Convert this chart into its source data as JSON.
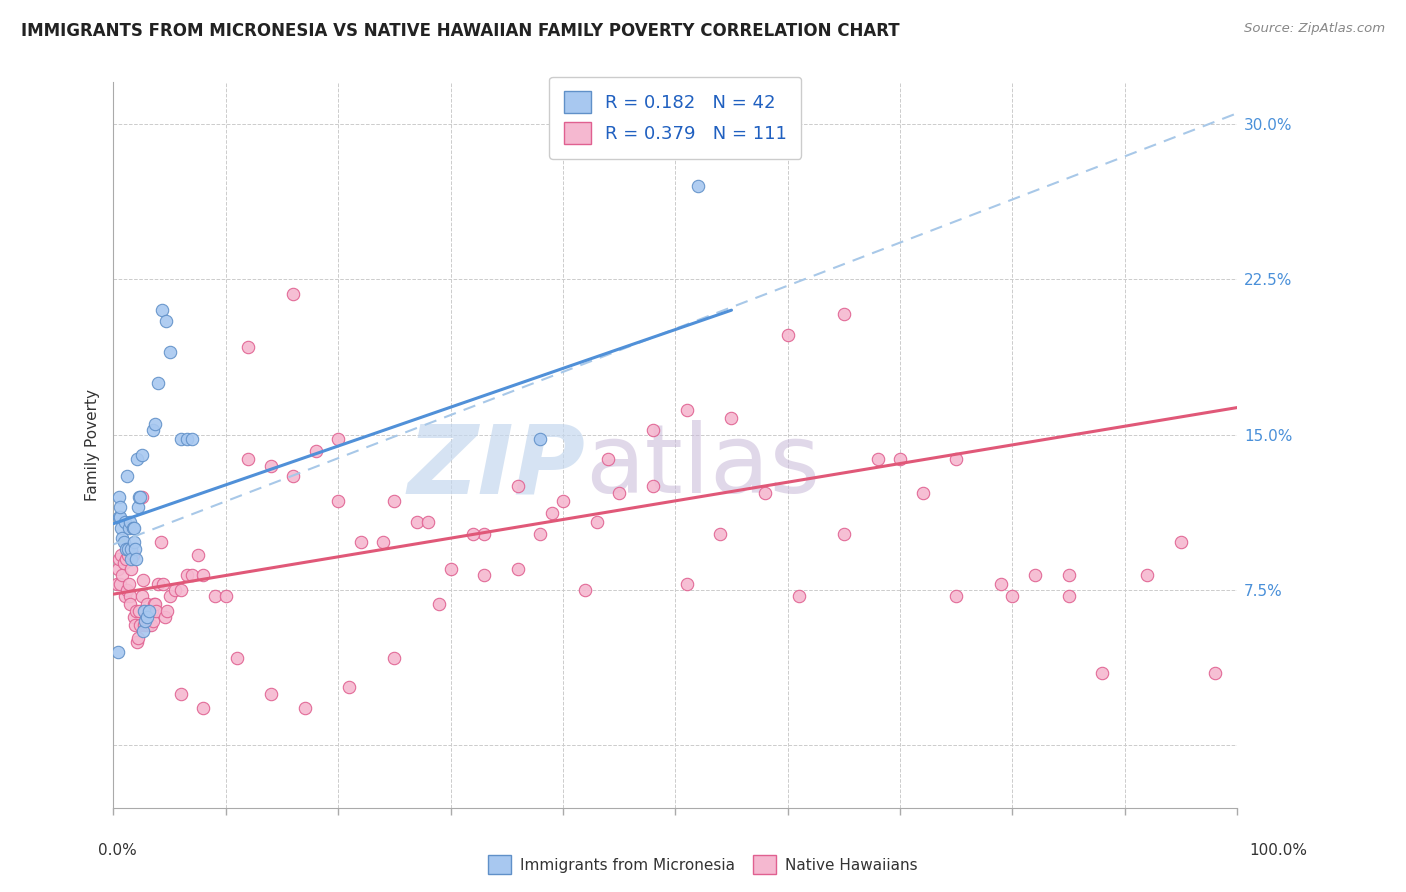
{
  "title": "IMMIGRANTS FROM MICRONESIA VS NATIVE HAWAIIAN FAMILY POVERTY CORRELATION CHART",
  "source": "Source: ZipAtlas.com",
  "ylabel": "Family Poverty",
  "yticks": [
    0.0,
    0.075,
    0.15,
    0.225,
    0.3
  ],
  "ytick_labels": [
    "",
    "7.5%",
    "15.0%",
    "22.5%",
    "30.0%"
  ],
  "legend_r1": "0.182",
  "legend_n1": "42",
  "legend_r2": "0.379",
  "legend_n2": "111",
  "color_blue_fill": "#A8C8F0",
  "color_pink_fill": "#F5B8D0",
  "color_blue_edge": "#6090C8",
  "color_pink_edge": "#E06090",
  "color_blue_line": "#5090D8",
  "color_pink_line": "#E05878",
  "color_dashed": "#A8C8E8",
  "xlim": [
    0.0,
    1.0
  ],
  "ylim": [
    -0.03,
    0.32
  ],
  "blue_line_x0": 0.0,
  "blue_line_y0": 0.107,
  "blue_line_x1": 0.55,
  "blue_line_y1": 0.21,
  "pink_line_x0": 0.0,
  "pink_line_y0": 0.073,
  "pink_line_x1": 1.0,
  "pink_line_y1": 0.163,
  "dashed_line_x0": 0.0,
  "dashed_line_y0": 0.097,
  "dashed_line_x1": 1.0,
  "dashed_line_y1": 0.305,
  "blue_scatter_x": [
    0.004,
    0.005,
    0.005,
    0.006,
    0.006,
    0.007,
    0.008,
    0.009,
    0.01,
    0.011,
    0.012,
    0.013,
    0.014,
    0.015,
    0.016,
    0.016,
    0.017,
    0.018,
    0.018,
    0.019,
    0.02,
    0.021,
    0.022,
    0.023,
    0.024,
    0.025,
    0.026,
    0.027,
    0.028,
    0.03,
    0.032,
    0.035,
    0.037,
    0.04,
    0.043,
    0.047,
    0.05,
    0.06,
    0.065,
    0.07,
    0.38,
    0.52
  ],
  "blue_scatter_y": [
    0.045,
    0.11,
    0.12,
    0.11,
    0.115,
    0.105,
    0.1,
    0.098,
    0.108,
    0.095,
    0.13,
    0.095,
    0.105,
    0.108,
    0.095,
    0.09,
    0.105,
    0.105,
    0.098,
    0.095,
    0.09,
    0.138,
    0.115,
    0.12,
    0.12,
    0.14,
    0.055,
    0.065,
    0.06,
    0.062,
    0.065,
    0.152,
    0.155,
    0.175,
    0.21,
    0.205,
    0.19,
    0.148,
    0.148,
    0.148,
    0.148,
    0.27
  ],
  "pink_scatter_x": [
    0.003,
    0.004,
    0.005,
    0.006,
    0.007,
    0.008,
    0.009,
    0.01,
    0.011,
    0.012,
    0.013,
    0.014,
    0.015,
    0.015,
    0.016,
    0.017,
    0.018,
    0.019,
    0.02,
    0.021,
    0.022,
    0.023,
    0.024,
    0.025,
    0.025,
    0.026,
    0.027,
    0.028,
    0.029,
    0.03,
    0.031,
    0.032,
    0.033,
    0.034,
    0.035,
    0.036,
    0.037,
    0.038,
    0.04,
    0.042,
    0.044,
    0.046,
    0.048,
    0.05,
    0.055,
    0.06,
    0.065,
    0.07,
    0.075,
    0.08,
    0.09,
    0.1,
    0.12,
    0.14,
    0.16,
    0.18,
    0.2,
    0.22,
    0.25,
    0.27,
    0.3,
    0.33,
    0.36,
    0.39,
    0.42,
    0.45,
    0.48,
    0.51,
    0.54,
    0.58,
    0.61,
    0.65,
    0.68,
    0.72,
    0.75,
    0.79,
    0.82,
    0.85,
    0.88,
    0.92,
    0.95,
    0.98,
    0.51,
    0.55,
    0.6,
    0.65,
    0.7,
    0.75,
    0.8,
    0.85,
    0.12,
    0.16,
    0.2,
    0.24,
    0.28,
    0.32,
    0.36,
    0.4,
    0.44,
    0.48,
    0.43,
    0.38,
    0.33,
    0.29,
    0.25,
    0.21,
    0.17,
    0.14,
    0.11,
    0.08,
    0.06
  ],
  "pink_scatter_y": [
    0.078,
    0.085,
    0.09,
    0.078,
    0.092,
    0.082,
    0.088,
    0.072,
    0.09,
    0.075,
    0.092,
    0.078,
    0.072,
    0.068,
    0.085,
    0.092,
    0.062,
    0.058,
    0.065,
    0.05,
    0.052,
    0.065,
    0.058,
    0.072,
    0.12,
    0.08,
    0.058,
    0.065,
    0.058,
    0.068,
    0.058,
    0.065,
    0.058,
    0.065,
    0.06,
    0.068,
    0.068,
    0.065,
    0.078,
    0.098,
    0.078,
    0.062,
    0.065,
    0.072,
    0.075,
    0.075,
    0.082,
    0.082,
    0.092,
    0.082,
    0.072,
    0.072,
    0.138,
    0.135,
    0.13,
    0.142,
    0.118,
    0.098,
    0.118,
    0.108,
    0.085,
    0.102,
    0.085,
    0.112,
    0.075,
    0.122,
    0.125,
    0.078,
    0.102,
    0.122,
    0.072,
    0.102,
    0.138,
    0.122,
    0.072,
    0.078,
    0.082,
    0.072,
    0.035,
    0.082,
    0.098,
    0.035,
    0.162,
    0.158,
    0.198,
    0.208,
    0.138,
    0.138,
    0.072,
    0.082,
    0.192,
    0.218,
    0.148,
    0.098,
    0.108,
    0.102,
    0.125,
    0.118,
    0.138,
    0.152,
    0.108,
    0.102,
    0.082,
    0.068,
    0.042,
    0.028,
    0.018,
    0.025,
    0.042,
    0.018,
    0.025
  ]
}
